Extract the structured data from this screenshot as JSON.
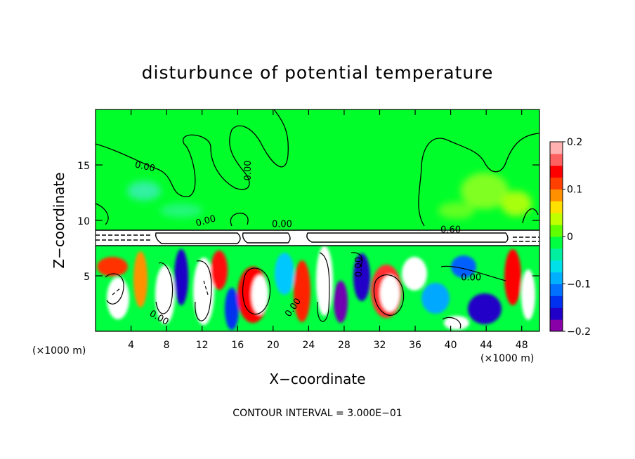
{
  "chart_data": {
    "type": "heatmap",
    "title": "disturbunce of potential temperature",
    "xlabel": "X−coordinate",
    "ylabel": "Z−coordinate",
    "x_unit_left": "(×1000 m)",
    "x_unit_right": "(×1000 m)",
    "xlim": [
      0,
      50
    ],
    "ylim": [
      0,
      20
    ],
    "x_ticks": [
      4,
      8,
      12,
      16,
      20,
      24,
      28,
      32,
      36,
      40,
      44,
      48
    ],
    "x_tick_labels": [
      "4",
      "8",
      "12",
      "16",
      "20",
      "24",
      "28",
      "32",
      "36",
      "40",
      "44",
      "48"
    ],
    "y_ticks": [
      5,
      10,
      15
    ],
    "y_tick_labels": [
      "5",
      "10",
      "15"
    ],
    "note": "CONTOUR INTERVAL = 3.000E−01",
    "colorbar": {
      "min": -0.2,
      "max": 0.2,
      "ticks": [
        0.2,
        0.1,
        0,
        -0.1,
        -0.2
      ],
      "tick_labels": [
        "0.2",
        "0.1",
        "0",
        "−0.1",
        "−0.2"
      ],
      "colors": [
        "#8a00a8",
        "#2000c8",
        "#0030f0",
        "#0070ff",
        "#00b0ff",
        "#00e0e8",
        "#00f0a0",
        "#00ff40",
        "#60ff00",
        "#c0ff00",
        "#ffe000",
        "#ff9000",
        "#ff4000",
        "#ff0000",
        "#ff6060",
        "#ffb0b0"
      ]
    },
    "contour_labels": [
      {
        "text": "0.00",
        "x": 5.5,
        "z": 14.6,
        "angle": 12
      },
      {
        "text": "0.00",
        "x": 17.5,
        "z": 14.5,
        "angle": -90
      },
      {
        "text": "0.00",
        "x": 12.5,
        "z": 9.7,
        "angle": -15
      },
      {
        "text": "0.00",
        "x": 21.0,
        "z": 9.4,
        "angle": 0
      },
      {
        "text": "0.60",
        "x": 40.0,
        "z": 8.9,
        "angle": 0
      },
      {
        "text": "0.00",
        "x": 30.0,
        "z": 5.8,
        "angle": -90
      },
      {
        "text": "0.00",
        "x": 42.3,
        "z": 4.6,
        "angle": 0
      },
      {
        "text": "0.00",
        "x": 22.5,
        "z": 2.0,
        "angle": -55
      },
      {
        "text": "0.00",
        "x": 7.0,
        "z": 1.0,
        "angle": 30
      }
    ]
  }
}
